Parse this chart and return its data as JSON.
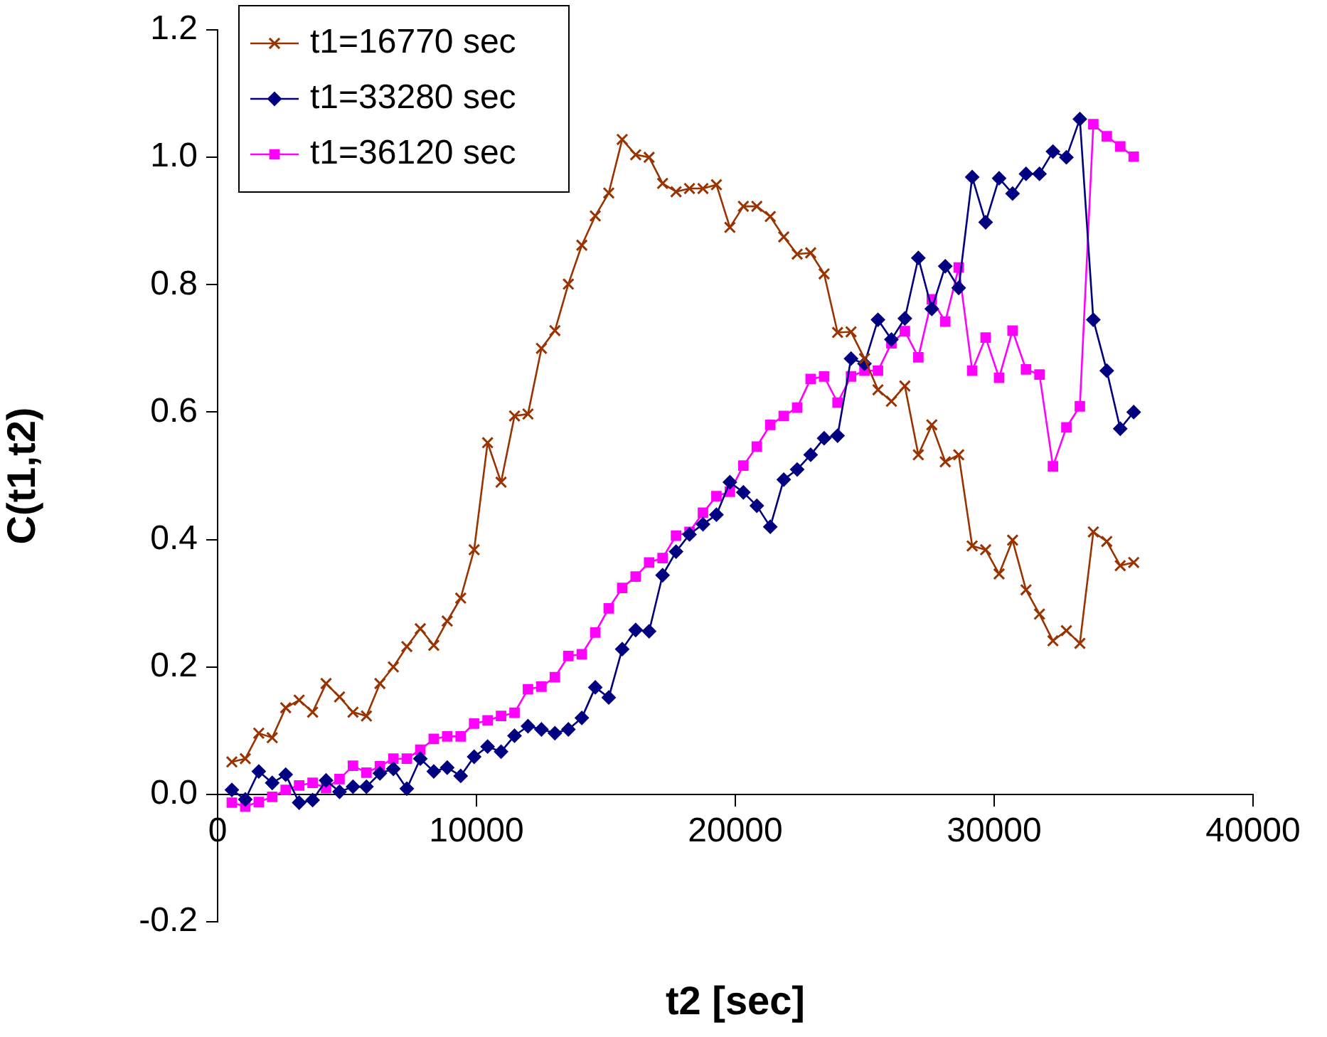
{
  "chart_data": {
    "type": "line",
    "xlabel": "t2 [sec]",
    "ylabel": "C(t1,t2)",
    "x": [
      550,
      1070,
      1590,
      2110,
      2630,
      3150,
      3670,
      4190,
      4710,
      5230,
      5750,
      6270,
      6790,
      7310,
      7830,
      8350,
      8870,
      9390,
      9910,
      10430,
      10950,
      11470,
      11990,
      12510,
      13030,
      13550,
      14070,
      14590,
      15110,
      15630,
      16150,
      16670,
      17190,
      17710,
      18230,
      18750,
      19270,
      19790,
      20310,
      20830,
      21350,
      21870,
      22390,
      22910,
      23430,
      23950,
      24470,
      24990,
      25510,
      26030,
      26550,
      27070,
      27590,
      28110,
      28630,
      29150,
      29670,
      30190,
      30710,
      31230,
      31750,
      32270,
      32790,
      33310,
      33830,
      34350,
      34870,
      35390
    ],
    "series": [
      {
        "name": "t1=16770 sec",
        "color": "#993300",
        "marker": "cross",
        "values": [
          0.051,
          0.056,
          0.096,
          0.089,
          0.136,
          0.148,
          0.129,
          0.174,
          0.153,
          0.129,
          0.123,
          0.174,
          0.2,
          0.232,
          0.26,
          0.234,
          0.272,
          0.308,
          0.384,
          0.552,
          0.49,
          0.594,
          0.597,
          0.7,
          0.728,
          0.801,
          0.862,
          0.908,
          0.944,
          1.028,
          1.004,
          1.0,
          0.959,
          0.946,
          0.951,
          0.951,
          0.957,
          0.89,
          0.923,
          0.923,
          0.907,
          0.875,
          0.848,
          0.85,
          0.817,
          0.725,
          0.726,
          0.684,
          0.635,
          0.617,
          0.641,
          0.533,
          0.58,
          0.522,
          0.533,
          0.39,
          0.384,
          0.346,
          0.399,
          0.321,
          0.283,
          0.241,
          0.257,
          0.237,
          0.412,
          0.397,
          0.359,
          0.364
        ]
      },
      {
        "name": "t1=33280 sec",
        "color": "#000080",
        "marker": "diamond",
        "values": [
          0.007,
          -0.008,
          0.036,
          0.018,
          0.031,
          -0.013,
          -0.009,
          0.022,
          0.004,
          0.012,
          0.012,
          0.033,
          0.04,
          0.009,
          0.056,
          0.036,
          0.042,
          0.029,
          0.059,
          0.075,
          0.067,
          0.092,
          0.107,
          0.102,
          0.096,
          0.102,
          0.12,
          0.168,
          0.152,
          0.228,
          0.258,
          0.256,
          0.344,
          0.381,
          0.408,
          0.424,
          0.439,
          0.49,
          0.474,
          0.453,
          0.42,
          0.494,
          0.51,
          0.533,
          0.559,
          0.563,
          0.684,
          0.676,
          0.745,
          0.714,
          0.747,
          0.842,
          0.762,
          0.829,
          0.795,
          0.969,
          0.898,
          0.967,
          0.943,
          0.974,
          0.974,
          1.009,
          1.0,
          1.06,
          0.745,
          0.665,
          0.574,
          0.6
        ]
      },
      {
        "name": "t1=36120 sec",
        "color": "#ff00ff",
        "marker": "square",
        "values": [
          -0.013,
          -0.019,
          -0.012,
          -0.004,
          0.007,
          0.014,
          0.018,
          0.01,
          0.024,
          0.045,
          0.034,
          0.044,
          0.056,
          0.056,
          0.07,
          0.087,
          0.091,
          0.091,
          0.111,
          0.116,
          0.123,
          0.128,
          0.165,
          0.169,
          0.184,
          0.217,
          0.22,
          0.254,
          0.292,
          0.324,
          0.342,
          0.364,
          0.371,
          0.406,
          0.412,
          0.442,
          0.468,
          0.475,
          0.516,
          0.546,
          0.58,
          0.594,
          0.607,
          0.652,
          0.656,
          0.615,
          0.656,
          0.665,
          0.665,
          0.708,
          0.727,
          0.686,
          0.777,
          0.742,
          0.827,
          0.665,
          0.717,
          0.654,
          0.728,
          0.667,
          0.659,
          0.515,
          0.576,
          0.609,
          1.052,
          1.033,
          1.017,
          1.001
        ]
      }
    ],
    "xlim": [
      0,
      40000
    ],
    "xticks": [
      0,
      10000,
      20000,
      30000,
      40000
    ],
    "ylim": [
      -0.2,
      1.2
    ],
    "yticks": [
      -0.2,
      {
        "value": 0,
        "label": "0.0"
      },
      0.2,
      0.4,
      0.6,
      0.8,
      {
        "value": 1,
        "label": "1.0"
      },
      1.2
    ],
    "grid": false,
    "legend": "top left",
    "line_style": "solid"
  }
}
